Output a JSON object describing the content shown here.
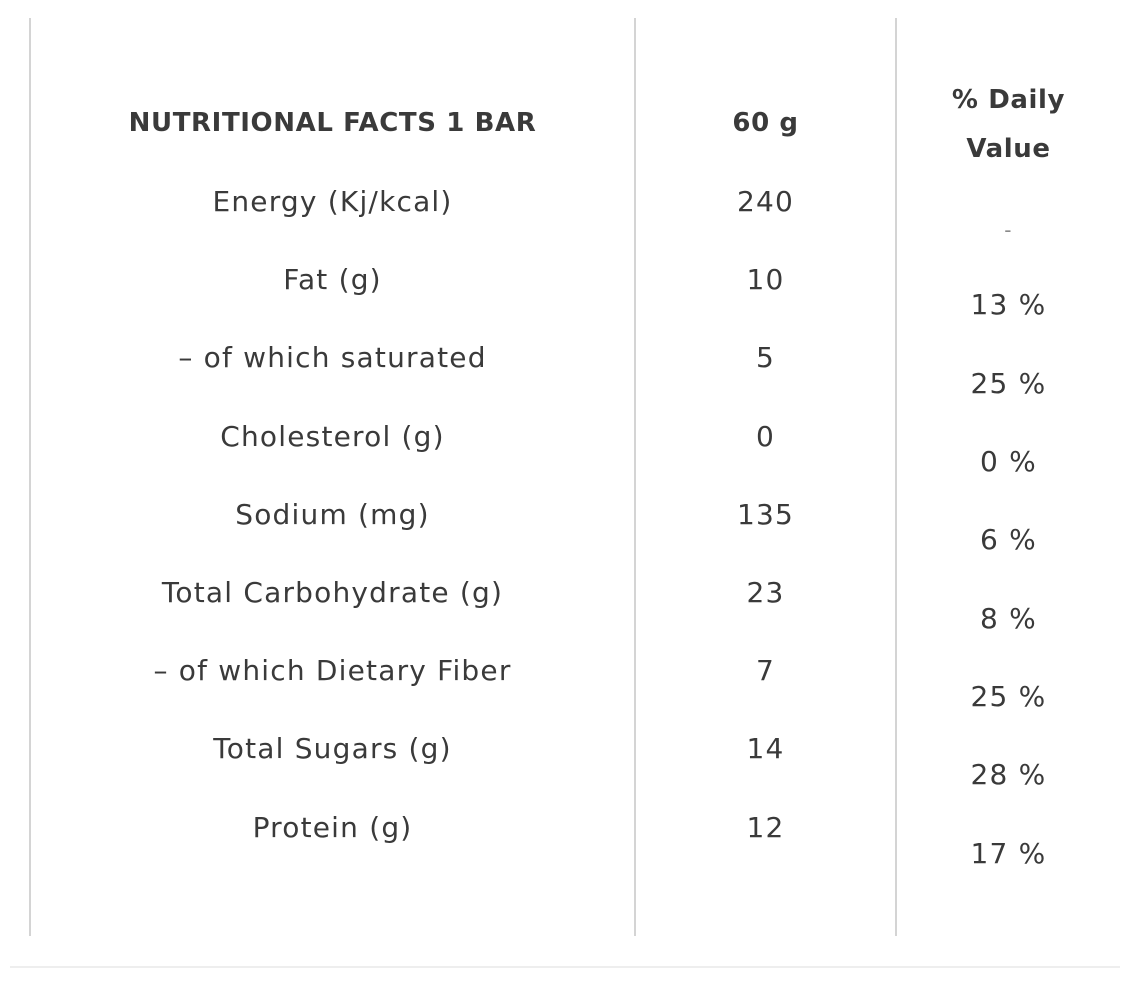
{
  "header": {
    "label": "NUTRITIONAL FACTS 1 BAR",
    "amount": "60 g",
    "daily_value_line1": "% Daily",
    "daily_value_line2": "Value"
  },
  "rows": [
    {
      "label": "Energy (Kj/kcal)",
      "amount": "240",
      "daily_value": "-"
    },
    {
      "label": "Fat (g)",
      "amount": "10",
      "daily_value": "13 %"
    },
    {
      "label": "– of which saturated",
      "amount": "5",
      "daily_value": "25 %"
    },
    {
      "label": "Cholesterol (g)",
      "amount": "0",
      "daily_value": "0 %"
    },
    {
      "label": "Sodium (mg)",
      "amount": "135",
      "daily_value": "6 %"
    },
    {
      "label": "Total Carbohydrate (g)",
      "amount": "23",
      "daily_value": "8 %"
    },
    {
      "label": "– of which Dietary Fiber",
      "amount": "7",
      "daily_value": "25 %"
    },
    {
      "label": "Total Sugars (g)",
      "amount": "14",
      "daily_value": "28 %"
    },
    {
      "label": "Protein (g)",
      "amount": "12",
      "daily_value": "17 %"
    }
  ]
}
